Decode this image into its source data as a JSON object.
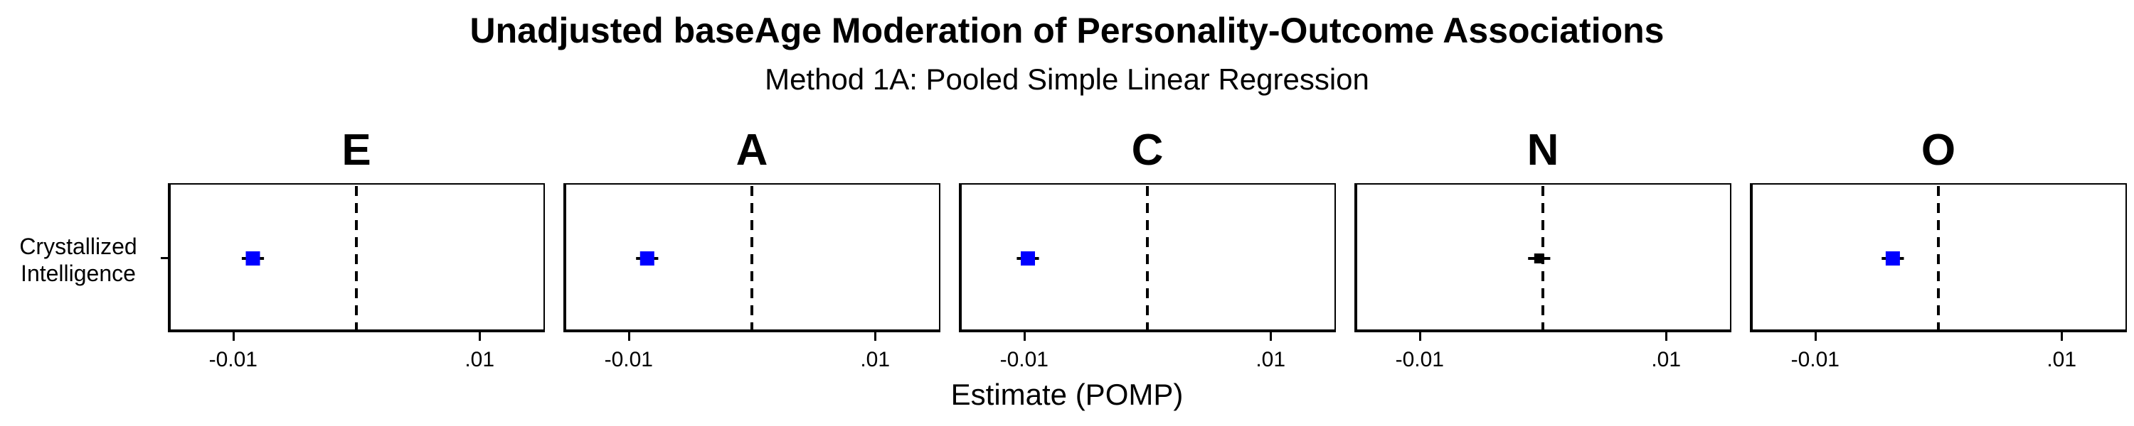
{
  "chart_data": {
    "type": "scatter",
    "title": "Unadjusted baseAge Moderation of Personality-Outcome Associations",
    "subtitle": "Method 1A: Pooled Simple Linear Regression",
    "xlabel": "Estimate (POMP)",
    "ylabel": "",
    "y_categories": [
      "Crystallized\nIntelligence"
    ],
    "xlim": [
      -0.0153,
      0.0153
    ],
    "x_ticks": [
      -0.01,
      0.01
    ],
    "x_tick_labels": [
      "-0.01",
      ".01"
    ],
    "reference_line": 0,
    "colors": {
      "significant": "#0000ff",
      "nonsignificant": "#000000"
    },
    "panels": [
      {
        "label": "E",
        "estimate": -0.0084,
        "ci_low": -0.0093,
        "ci_high": -0.0075,
        "significant": true
      },
      {
        "label": "A",
        "estimate": -0.0085,
        "ci_low": -0.0094,
        "ci_high": -0.0076,
        "significant": true
      },
      {
        "label": "C",
        "estimate": -0.0097,
        "ci_low": -0.0106,
        "ci_high": -0.0088,
        "significant": true
      },
      {
        "label": "N",
        "estimate": -0.0003,
        "ci_low": -0.0012,
        "ci_high": 0.0006,
        "significant": false
      },
      {
        "label": "O",
        "estimate": -0.0037,
        "ci_low": -0.0046,
        "ci_high": -0.0028,
        "significant": true
      }
    ]
  }
}
